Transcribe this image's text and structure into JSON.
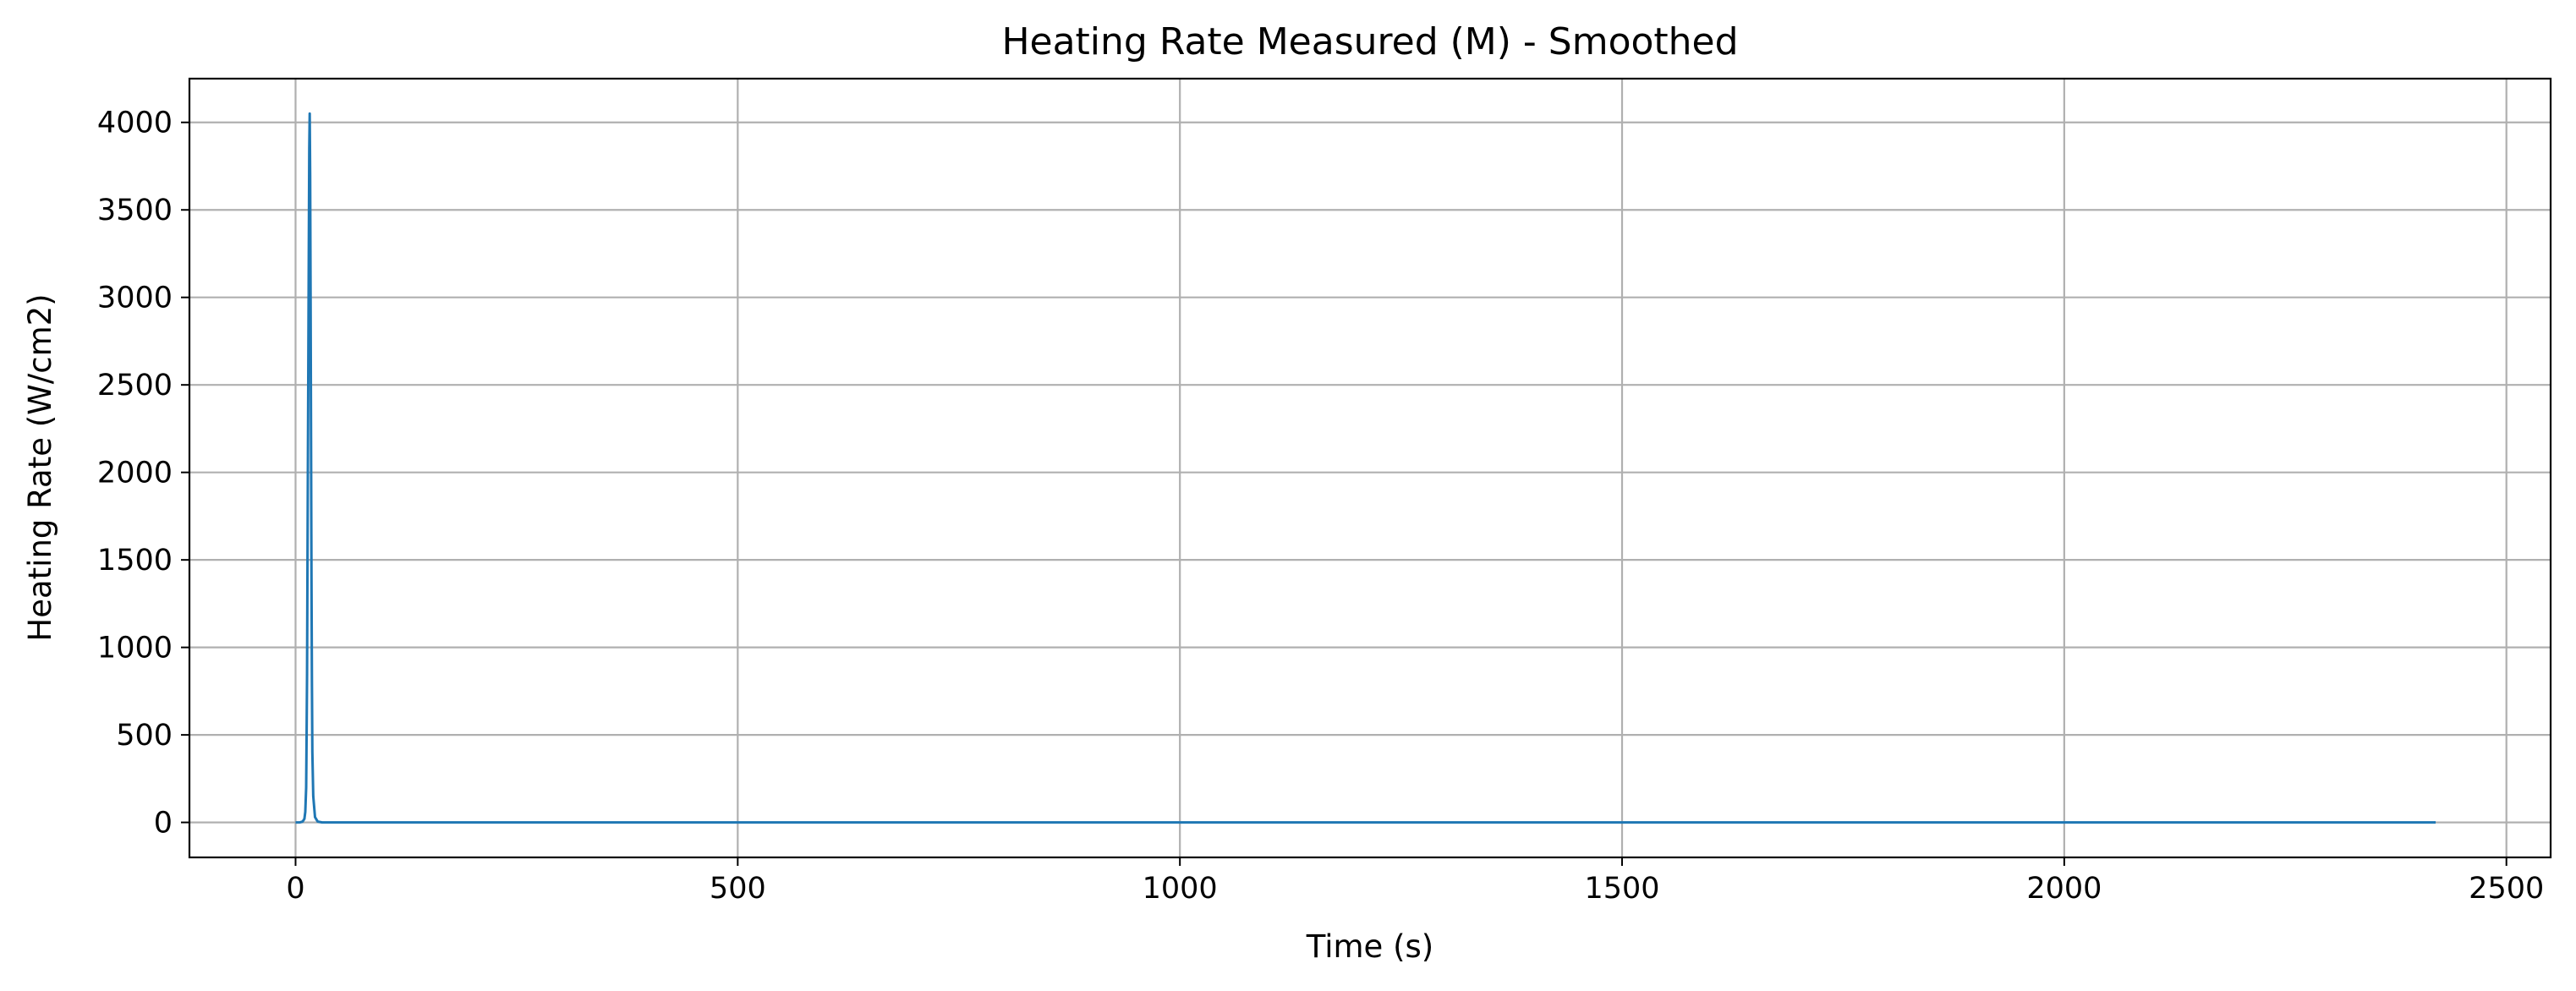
{
  "chart_data": {
    "type": "line",
    "title": "Heating Rate Measured (M) - Smoothed",
    "xlabel": "Time (s)",
    "ylabel": "Heating Rate (W/cm2)",
    "xlim": [
      -120,
      2550
    ],
    "ylim": [
      -200,
      4250
    ],
    "xticks": [
      0,
      500,
      1000,
      1500,
      2000,
      2500
    ],
    "yticks": [
      0,
      500,
      1000,
      1500,
      2000,
      2500,
      3000,
      3500,
      4000
    ],
    "grid": true,
    "series": [
      {
        "color": "#1f77b4",
        "x": [
          0,
          5,
          8,
          10,
          11,
          12,
          12.5,
          13,
          13.5,
          14,
          14.5,
          15,
          15.5,
          16,
          16.5,
          17,
          17.5,
          18,
          18.5,
          19,
          20,
          22,
          25,
          30,
          100,
          500,
          1000,
          1500,
          2000,
          2420
        ],
        "y": [
          0,
          0,
          5,
          20,
          60,
          200,
          500,
          850,
          1500,
          2100,
          2700,
          3300,
          3850,
          4050,
          3700,
          3000,
          2200,
          1400,
          800,
          400,
          150,
          30,
          5,
          0,
          0,
          0,
          0,
          0,
          0,
          0
        ]
      }
    ]
  }
}
